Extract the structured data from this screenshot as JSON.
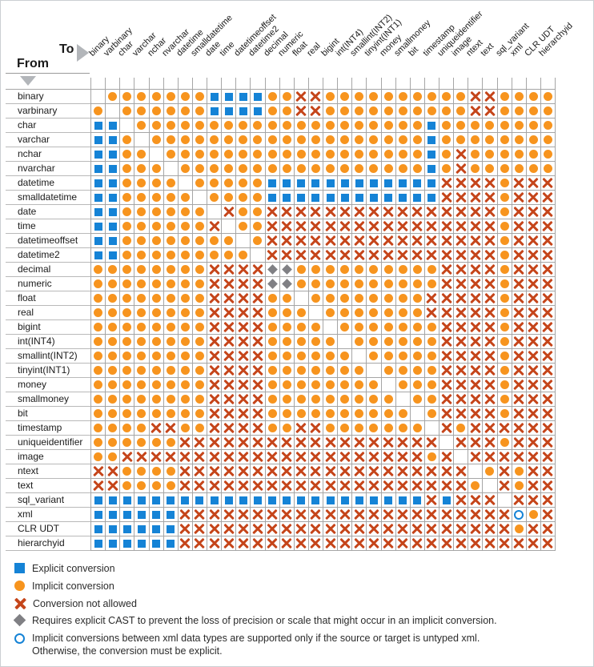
{
  "header": {
    "from_label": "From",
    "to_label": "To"
  },
  "types": [
    "binary",
    "varbinary",
    "char",
    "varchar",
    "nchar",
    "nvarchar",
    "datetime",
    "smalldatetime",
    "date",
    "time",
    "datetimeoffset",
    "datetime2",
    "decimal",
    "numeric",
    "float",
    "real",
    "bigint",
    "int(INT4)",
    "smallint(INT2)",
    "tinyint(INT1)",
    "money",
    "smallmoney",
    "bit",
    "timestamp",
    "uniqueidentifier",
    "image",
    "ntext",
    "text",
    "sql_variant",
    "xml",
    "CLR UDT",
    "hierarchyid"
  ],
  "symbol_codes": {
    "E": "explicit conversion (blue square)",
    "I": "implicit conversion (orange circle)",
    "X": "conversion not allowed (red x)",
    "D": "requires explicit CAST (gray diamond)",
    "O": "implicit only if untyped xml (open circle)",
    ".": "same type / blank"
  },
  "matrix": [
    ".IIIIIIIEEEEIIXXIIIIIIIIIIXXIIII",
    "I.IIIIIIEEEEIIXXIIIIIIIIIIXXIIII",
    "EE.IIIIIIIIIIIIIIIIIIIIEIIIIIIII",
    "EEI.IIIIIIIIIIIIIIIIIIIEIIIIIIII",
    "EEII.IIIIIIIIIIIIIIIIIIEIXIIIIII",
    "EEIII.IIIIIIIIIIIIIIIIIEIXIIIIII",
    "EEIIII.IIIIIEEEEEEEEEEEEXXXXIXXX",
    "EEIIIII.IIIIEEEEEEEEEEEEXXXXIXXX",
    "EEIIIIII.XIIXXXXXXXXXXXXXXXXIXXX",
    "EEIIIIIIX.IIXXXXXXXXXXXXXXXXIXXX",
    "EEIIIIIIII.IXXXXXXXXXXXXXXXXIXXX",
    "EEIIIIIIIII.XXXXXXXXXXXXXXXXIXXX",
    "IIIIIIIIXXXXDDIIIIIIIIIIXXXXIXXX",
    "IIIIIIIIXXXXDDIIIIIIIIIIXXXXIXXX",
    "IIIIIIIIXXXXII.IIIIIIIIXXXXXIXXX",
    "IIIIIIIIXXXXIII.IIIIIIIXXXXXIXXX",
    "IIIIIIIIXXXXIIII.IIIIIIIXXXXIXXX",
    "IIIIIIIIXXXXIIIII.IIIIIIXXXXIXXX",
    "IIIIIIIIXXXXIIIIII.IIIIIXXXXIXXX",
    "IIIIIIIIXXXXIIIIIII.IIIIXXXXIXXX",
    "IIIIIIIIXXXXIIIIIIII.IIIXXXXIXXX",
    "IIIIIIIIXXXXIIIIIIIII.IIXXXXIXXX",
    "IIIIIIIIXXXXIIIIIIIIII.IXXXXIXXX",
    "IIIIXXIIXXXXIIXXIIIIIII.XIXXXXXX",
    "IIIIIIXXXXXXXXXXXXXXXXXX.XXXIXXX",
    "IIXXXXXXXXXXXXXXXXXXXXXIX.XXXXXX",
    "XXIIIIXXXXXXXXXXXXXXXXXXXX.IXIXX",
    "XXIIIIXXXXXXXXXXXXXXXXXXXXI.XIXX",
    "EEEEEEEEEEEEEEEEEEEEEEEXEXXX.XXX",
    "EEEEEEXXXXXXXXXXXXXXXXXXXXXXXOIX",
    "EEEEEEXXXXXXXXXXXXXXXXXXXXXXXIXX",
    "EEEEEEXXXXXXXXXXXXXXXXXXXXXXXXXX"
  ],
  "legend": {
    "items": [
      {
        "label": "Explicit conversion"
      },
      {
        "label": "Implicit conversion"
      },
      {
        "label": "Conversion not allowed"
      },
      {
        "label": "Requires explicit CAST to prevent the loss of precision or scale that might occur in an implicit conversion."
      },
      {
        "label": "Implicit conversions between xml data types are supported only if the source or target is untyped xml.",
        "line2": "Otherwise, the conversion must be explicit."
      }
    ]
  },
  "colors": {
    "explicit_blue": "#1583D6",
    "implicit_orange": "#F7941E",
    "not_allowed_red": "#C5451A",
    "cast_diamond_gray": "#808084",
    "gridline": "#A6A6A6",
    "arrow_gray": "#B3B6BA"
  }
}
